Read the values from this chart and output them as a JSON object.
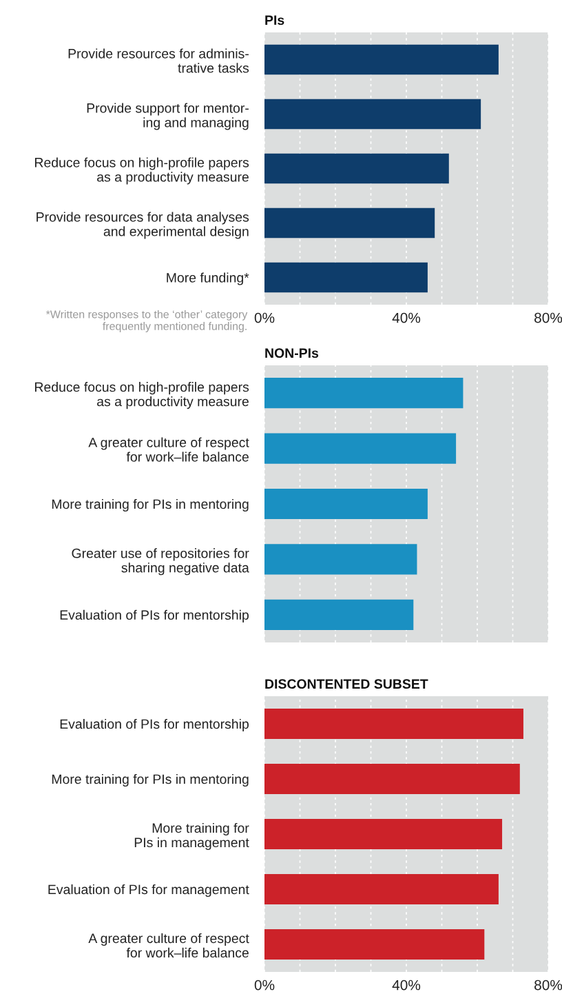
{
  "chart_data": [
    {
      "type": "bar",
      "orientation": "horizontal",
      "title": "PIs",
      "categories": [
        "Provide resources for adminis-\ntrative tasks",
        "Provide support for mentor-\ning and managing",
        "Reduce focus on high-profile papers\nas a productivity measure",
        "Provide resources for data analyses\nand experimental design",
        "More funding*"
      ],
      "values": [
        66,
        61,
        52,
        48,
        46
      ],
      "color": "#0e3d6b",
      "xlim": [
        0,
        80
      ],
      "xticks": [
        {
          "value": 0,
          "label": "0%"
        },
        {
          "value": 10,
          "label": null
        },
        {
          "value": 20,
          "label": null
        },
        {
          "value": 30,
          "label": null
        },
        {
          "value": 40,
          "label": "40%"
        },
        {
          "value": 50,
          "label": null
        },
        {
          "value": 60,
          "label": null
        },
        {
          "value": 70,
          "label": null
        },
        {
          "value": 80,
          "label": "80%"
        }
      ],
      "grid": "x",
      "annotations": [
        "*Written responses to the ‘other’ category\nfrequently mentioned funding."
      ]
    },
    {
      "type": "bar",
      "orientation": "horizontal",
      "title": "NON-PIs",
      "categories": [
        "Reduce focus on high-profile papers\nas a productivity measure",
        "A greater culture of respect\nfor work–life balance",
        "More training for PIs in mentoring",
        "Greater use of repositories for\nsharing negative data",
        "Evaluation of PIs for mentorship"
      ],
      "values": [
        56,
        54,
        46,
        43,
        42
      ],
      "color": "#1a90c2",
      "xlim": [
        0,
        80
      ],
      "xticks": [
        {
          "value": 0,
          "label": null
        },
        {
          "value": 10,
          "label": null
        },
        {
          "value": 20,
          "label": null
        },
        {
          "value": 30,
          "label": null
        },
        {
          "value": 40,
          "label": null
        },
        {
          "value": 50,
          "label": null
        },
        {
          "value": 60,
          "label": null
        },
        {
          "value": 70,
          "label": null
        },
        {
          "value": 80,
          "label": null
        }
      ],
      "grid": "x",
      "tick_labels": "y"
    },
    {
      "type": "bar",
      "orientation": "horizontal",
      "title": "DISCONTENTED SUBSET",
      "categories": [
        "Evaluation of PIs for mentorship",
        "More training for PIs in mentoring",
        "More training for\nPIs in management",
        "Evaluation of PIs for management",
        "A greater culture of respect\nfor work–life balance"
      ],
      "values": [
        73,
        72,
        67,
        66,
        62
      ],
      "color": "#cc2229",
      "xlim": [
        0,
        80
      ],
      "xticks": [
        {
          "value": 0,
          "label": "0%"
        },
        {
          "value": 10,
          "label": null
        },
        {
          "value": 20,
          "label": null
        },
        {
          "value": 30,
          "label": null
        },
        {
          "value": 40,
          "label": "40%"
        },
        {
          "value": 50,
          "label": null
        },
        {
          "value": 60,
          "label": null
        },
        {
          "value": 70,
          "label": null
        },
        {
          "value": 80,
          "label": "80%"
        }
      ],
      "grid": "x"
    }
  ]
}
